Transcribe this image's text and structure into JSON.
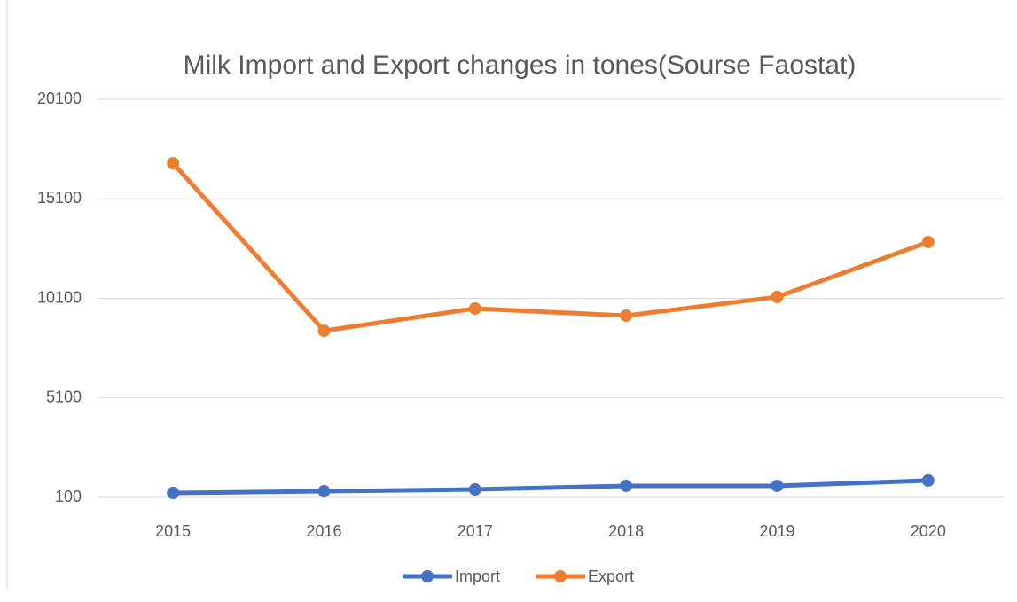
{
  "chart_data": {
    "type": "line",
    "title": "Milk Import and Export changes in tones(Sourse Faostat)",
    "categories": [
      "2015",
      "2016",
      "2017",
      "2018",
      "2019",
      "2020"
    ],
    "series": [
      {
        "name": "Import",
        "color": "#4472c4",
        "values": [
          320,
          410,
          500,
          680,
          680,
          950
        ]
      },
      {
        "name": "Export",
        "color": "#ed7d31",
        "values": [
          16890,
          8470,
          9590,
          9230,
          10170,
          12930
        ]
      }
    ],
    "ylim": [
      100,
      20100
    ],
    "yticks": [
      100,
      5100,
      10100,
      15100,
      20100
    ],
    "grid": true,
    "legend": "bottom"
  }
}
